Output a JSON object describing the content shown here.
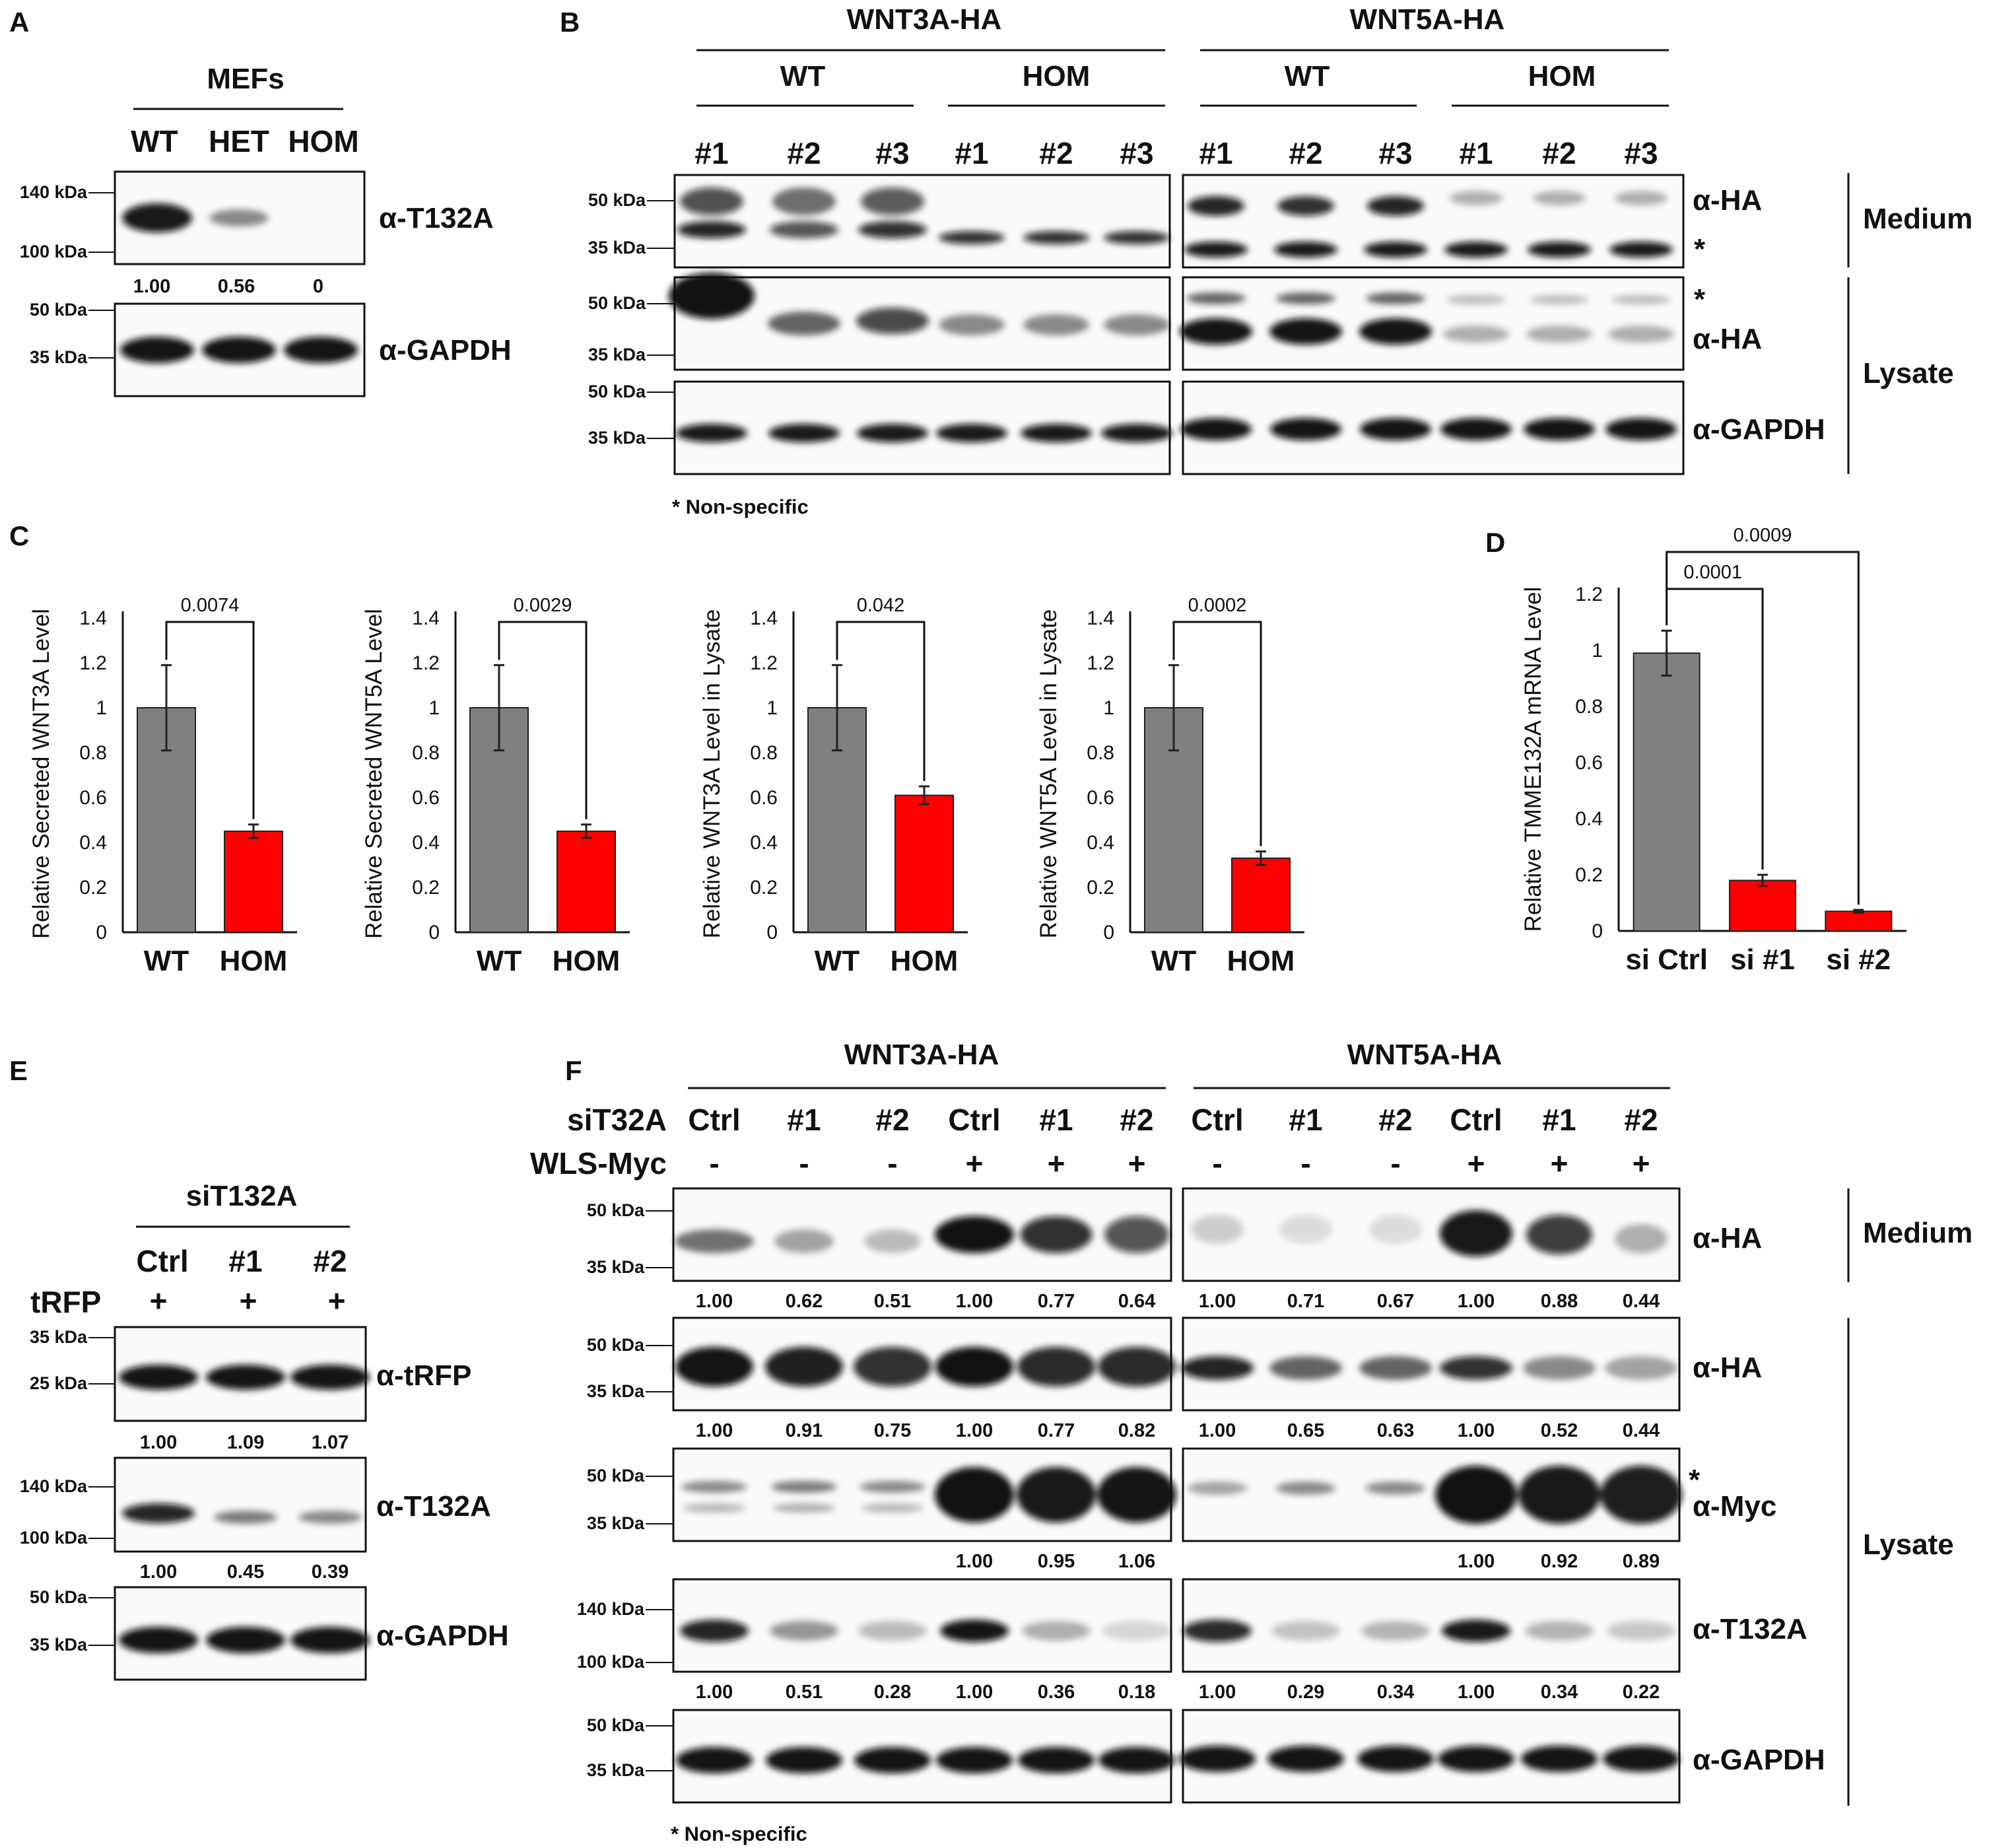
{
  "panels": {
    "A": "A",
    "B": "B",
    "C": "C",
    "D": "D",
    "E": "E",
    "F": "F"
  },
  "kda": {
    "k140": "140 kDa",
    "k100": "100 kDa",
    "k50": "50 kDa",
    "k35": "35 kDa",
    "k25": "25 kDa"
  },
  "common": {
    "wt": "WT",
    "het": "HET",
    "hom": "HOM",
    "ctrl": "Ctrl",
    "n1": "#1",
    "n2": "#2",
    "n3": "#3",
    "plus": "+",
    "minus": "-",
    "star": "*",
    "non_specific": "* Non-specific"
  },
  "A": {
    "group": "MEFs",
    "ab_t132a": "α-T132A",
    "ab_gapdh": "α-GAPDH",
    "quant": [
      "1.00",
      "0.56",
      "0"
    ]
  },
  "B": {
    "wnt3a": "WNT3A-HA",
    "wnt5a": "WNT5A-HA",
    "ab_ha": "α-HA",
    "ab_gapdh": "α-GAPDH",
    "medium": "Medium",
    "lysate": "Lysate"
  },
  "C": {
    "ylabels": [
      "Relative Secreted WNT3A Level",
      "Relative Secreted WNT5A Level",
      "Relative WNT3A Level in Lysate",
      "Relative WNT5A Level in Lysate"
    ],
    "pvalues": [
      "0.0074",
      "0.0029",
      "0.042",
      "0.0002"
    ],
    "yticks": [
      "0",
      "0.2",
      "0.4",
      "0.6",
      "0.8",
      "1",
      "1.2",
      "1.4"
    ]
  },
  "D": {
    "ylabel": "Relative TMME132A mRNA Level",
    "categories": [
      "si Ctrl",
      "si #1",
      "si #2"
    ],
    "pvalues": [
      "0.0001",
      "0.0009"
    ],
    "yticks": [
      "0",
      "0.2",
      "0.4",
      "0.6",
      "0.8",
      "1",
      "1.2"
    ]
  },
  "E": {
    "group": "siT132A",
    "row_label": "tRFP",
    "ab_trfp": "α-tRFP",
    "ab_t132a": "α-T132A",
    "ab_gapdh": "α-GAPDH",
    "quant_trfp": [
      "1.00",
      "1.09",
      "1.07"
    ],
    "quant_t132a": [
      "1.00",
      "0.45",
      "0.39"
    ]
  },
  "F": {
    "wnt3a": "WNT3A-HA",
    "wnt5a": "WNT5A-HA",
    "row_si": "siT32A",
    "row_wls": "WLS-Myc",
    "ab_ha": "α-HA",
    "ab_myc": "α-Myc",
    "ab_t132a": "α-T132A",
    "ab_gapdh": "α-GAPDH",
    "medium": "Medium",
    "lysate": "Lysate",
    "quant_medium": [
      "1.00",
      "0.62",
      "0.51",
      "1.00",
      "0.77",
      "0.64",
      "1.00",
      "0.71",
      "0.67",
      "1.00",
      "0.88",
      "0.44"
    ],
    "quant_lysate_ha": [
      "1.00",
      "0.91",
      "0.75",
      "1.00",
      "0.77",
      "0.82",
      "1.00",
      "0.65",
      "0.63",
      "1.00",
      "0.52",
      "0.44"
    ],
    "quant_myc": [
      "1.00",
      "0.95",
      "1.06",
      "1.00",
      "0.92",
      "0.89"
    ],
    "quant_t132a": [
      "1.00",
      "0.51",
      "0.28",
      "1.00",
      "0.36",
      "0.18",
      "1.00",
      "0.29",
      "0.34",
      "1.00",
      "0.34",
      "0.22"
    ]
  },
  "chart_data": [
    {
      "type": "bar",
      "categories": [
        "WT",
        "HOM"
      ],
      "values": [
        1.0,
        0.45
      ],
      "errors": [
        0.19,
        0.03
      ],
      "ylabel": "Relative Secreted WNT3A Level",
      "ylim": [
        0,
        1.4
      ],
      "annotation": "0.0074",
      "colors": [
        "#808080",
        "#ff0000"
      ]
    },
    {
      "type": "bar",
      "categories": [
        "WT",
        "HOM"
      ],
      "values": [
        1.0,
        0.45
      ],
      "errors": [
        0.19,
        0.03
      ],
      "ylabel": "Relative Secreted WNT5A Level",
      "ylim": [
        0,
        1.4
      ],
      "annotation": "0.0029",
      "colors": [
        "#808080",
        "#ff0000"
      ]
    },
    {
      "type": "bar",
      "categories": [
        "WT",
        "HOM"
      ],
      "values": [
        1.0,
        0.61
      ],
      "errors": [
        0.19,
        0.04
      ],
      "ylabel": "Relative WNT3A Level in Lysate",
      "ylim": [
        0,
        1.4
      ],
      "annotation": "0.042",
      "colors": [
        "#808080",
        "#ff0000"
      ]
    },
    {
      "type": "bar",
      "categories": [
        "WT",
        "HOM"
      ],
      "values": [
        1.0,
        0.33
      ],
      "errors": [
        0.19,
        0.03
      ],
      "ylabel": "Relative WNT5A Level in Lysate",
      "ylim": [
        0,
        1.4
      ],
      "annotation": "0.0002",
      "colors": [
        "#808080",
        "#ff0000"
      ]
    },
    {
      "type": "bar",
      "categories": [
        "si Ctrl",
        "si #1",
        "si #2"
      ],
      "values": [
        0.99,
        0.18,
        0.07
      ],
      "errors": [
        0.08,
        0.02,
        0.005
      ],
      "ylabel": "Relative TMME132A mRNA Level",
      "ylim": [
        0,
        1.2
      ],
      "annotations": [
        "0.0001",
        "0.0009"
      ],
      "colors": [
        "#808080",
        "#ff0000",
        "#ff0000"
      ]
    }
  ]
}
